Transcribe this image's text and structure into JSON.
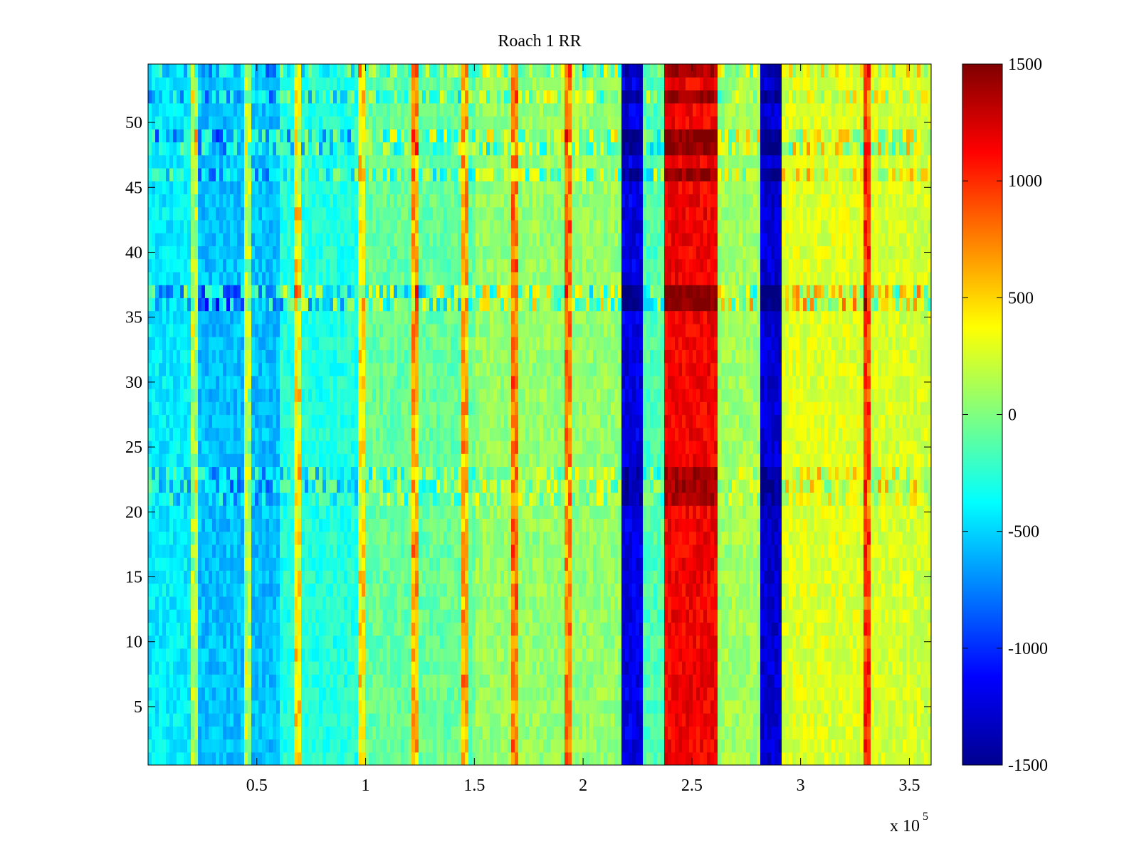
{
  "chart_data": {
    "type": "heatmap",
    "title": "Roach 1 RR",
    "xlabel": "",
    "ylabel": "",
    "x_multiplier_label": "x 10",
    "x_multiplier_exponent": "5",
    "xlim": [
      0,
      360000
    ],
    "ylim": [
      0.5,
      54.5
    ],
    "x_ticks": [
      {
        "value": 50000,
        "label": "0.5"
      },
      {
        "value": 100000,
        "label": "1"
      },
      {
        "value": 150000,
        "label": "1.5"
      },
      {
        "value": 200000,
        "label": "2"
      },
      {
        "value": 250000,
        "label": "2.5"
      },
      {
        "value": 300000,
        "label": "3"
      },
      {
        "value": 350000,
        "label": "3.5"
      }
    ],
    "y_ticks": [
      {
        "value": 5,
        "label": "5"
      },
      {
        "value": 10,
        "label": "10"
      },
      {
        "value": 15,
        "label": "15"
      },
      {
        "value": 20,
        "label": "20"
      },
      {
        "value": 25,
        "label": "25"
      },
      {
        "value": 30,
        "label": "30"
      },
      {
        "value": 35,
        "label": "35"
      },
      {
        "value": 40,
        "label": "40"
      },
      {
        "value": 45,
        "label": "45"
      },
      {
        "value": 50,
        "label": "50"
      }
    ],
    "rows": 54,
    "colorbar": {
      "colormap": "jet",
      "clim": [
        -1500,
        1500
      ],
      "ticks": [
        {
          "value": 1500,
          "label": "1500"
        },
        {
          "value": 1000,
          "label": "1000"
        },
        {
          "value": 500,
          "label": "500"
        },
        {
          "value": 0,
          "label": "0"
        },
        {
          "value": -500,
          "label": "-500"
        },
        {
          "value": -1000,
          "label": "-1000"
        },
        {
          "value": -1500,
          "label": "-1500"
        }
      ]
    },
    "column_bands": [
      {
        "x_start": 0,
        "x_end": 20000,
        "value": -420
      },
      {
        "x_start": 20000,
        "x_end": 60000,
        "value": -560
      },
      {
        "x_start": 60000,
        "x_end": 100000,
        "value": -280
      },
      {
        "x_start": 100000,
        "x_end": 150000,
        "value": -80
      },
      {
        "x_start": 150000,
        "x_end": 218000,
        "value": 60
      },
      {
        "x_start": 218000,
        "x_end": 228000,
        "value": -1200
      },
      {
        "x_start": 228000,
        "x_end": 238000,
        "value": -150
      },
      {
        "x_start": 238000,
        "x_end": 262000,
        "value": 1150
      },
      {
        "x_start": 262000,
        "x_end": 282000,
        "value": 100
      },
      {
        "x_start": 282000,
        "x_end": 292000,
        "value": -1250
      },
      {
        "x_start": 292000,
        "x_end": 330000,
        "value": 280
      },
      {
        "x_start": 330000,
        "x_end": 360000,
        "value": 250
      }
    ],
    "row_offsets": [
      {
        "row": 23,
        "value": 300
      },
      {
        "row": 22,
        "value": 300
      },
      {
        "row": 21,
        "value": 250
      },
      {
        "row": 37,
        "value": 450
      },
      {
        "row": 36,
        "value": 450
      },
      {
        "row": 46,
        "value": 350
      },
      {
        "row": 48,
        "value": 400
      },
      {
        "row": 49,
        "value": 400
      },
      {
        "row": 52,
        "value": 300
      },
      {
        "row": 54,
        "value": 300
      }
    ],
    "vertical_spikes_x": [
      22000,
      46000,
      69000,
      98000,
      123000,
      146000,
      169000,
      193000,
      330000
    ]
  }
}
